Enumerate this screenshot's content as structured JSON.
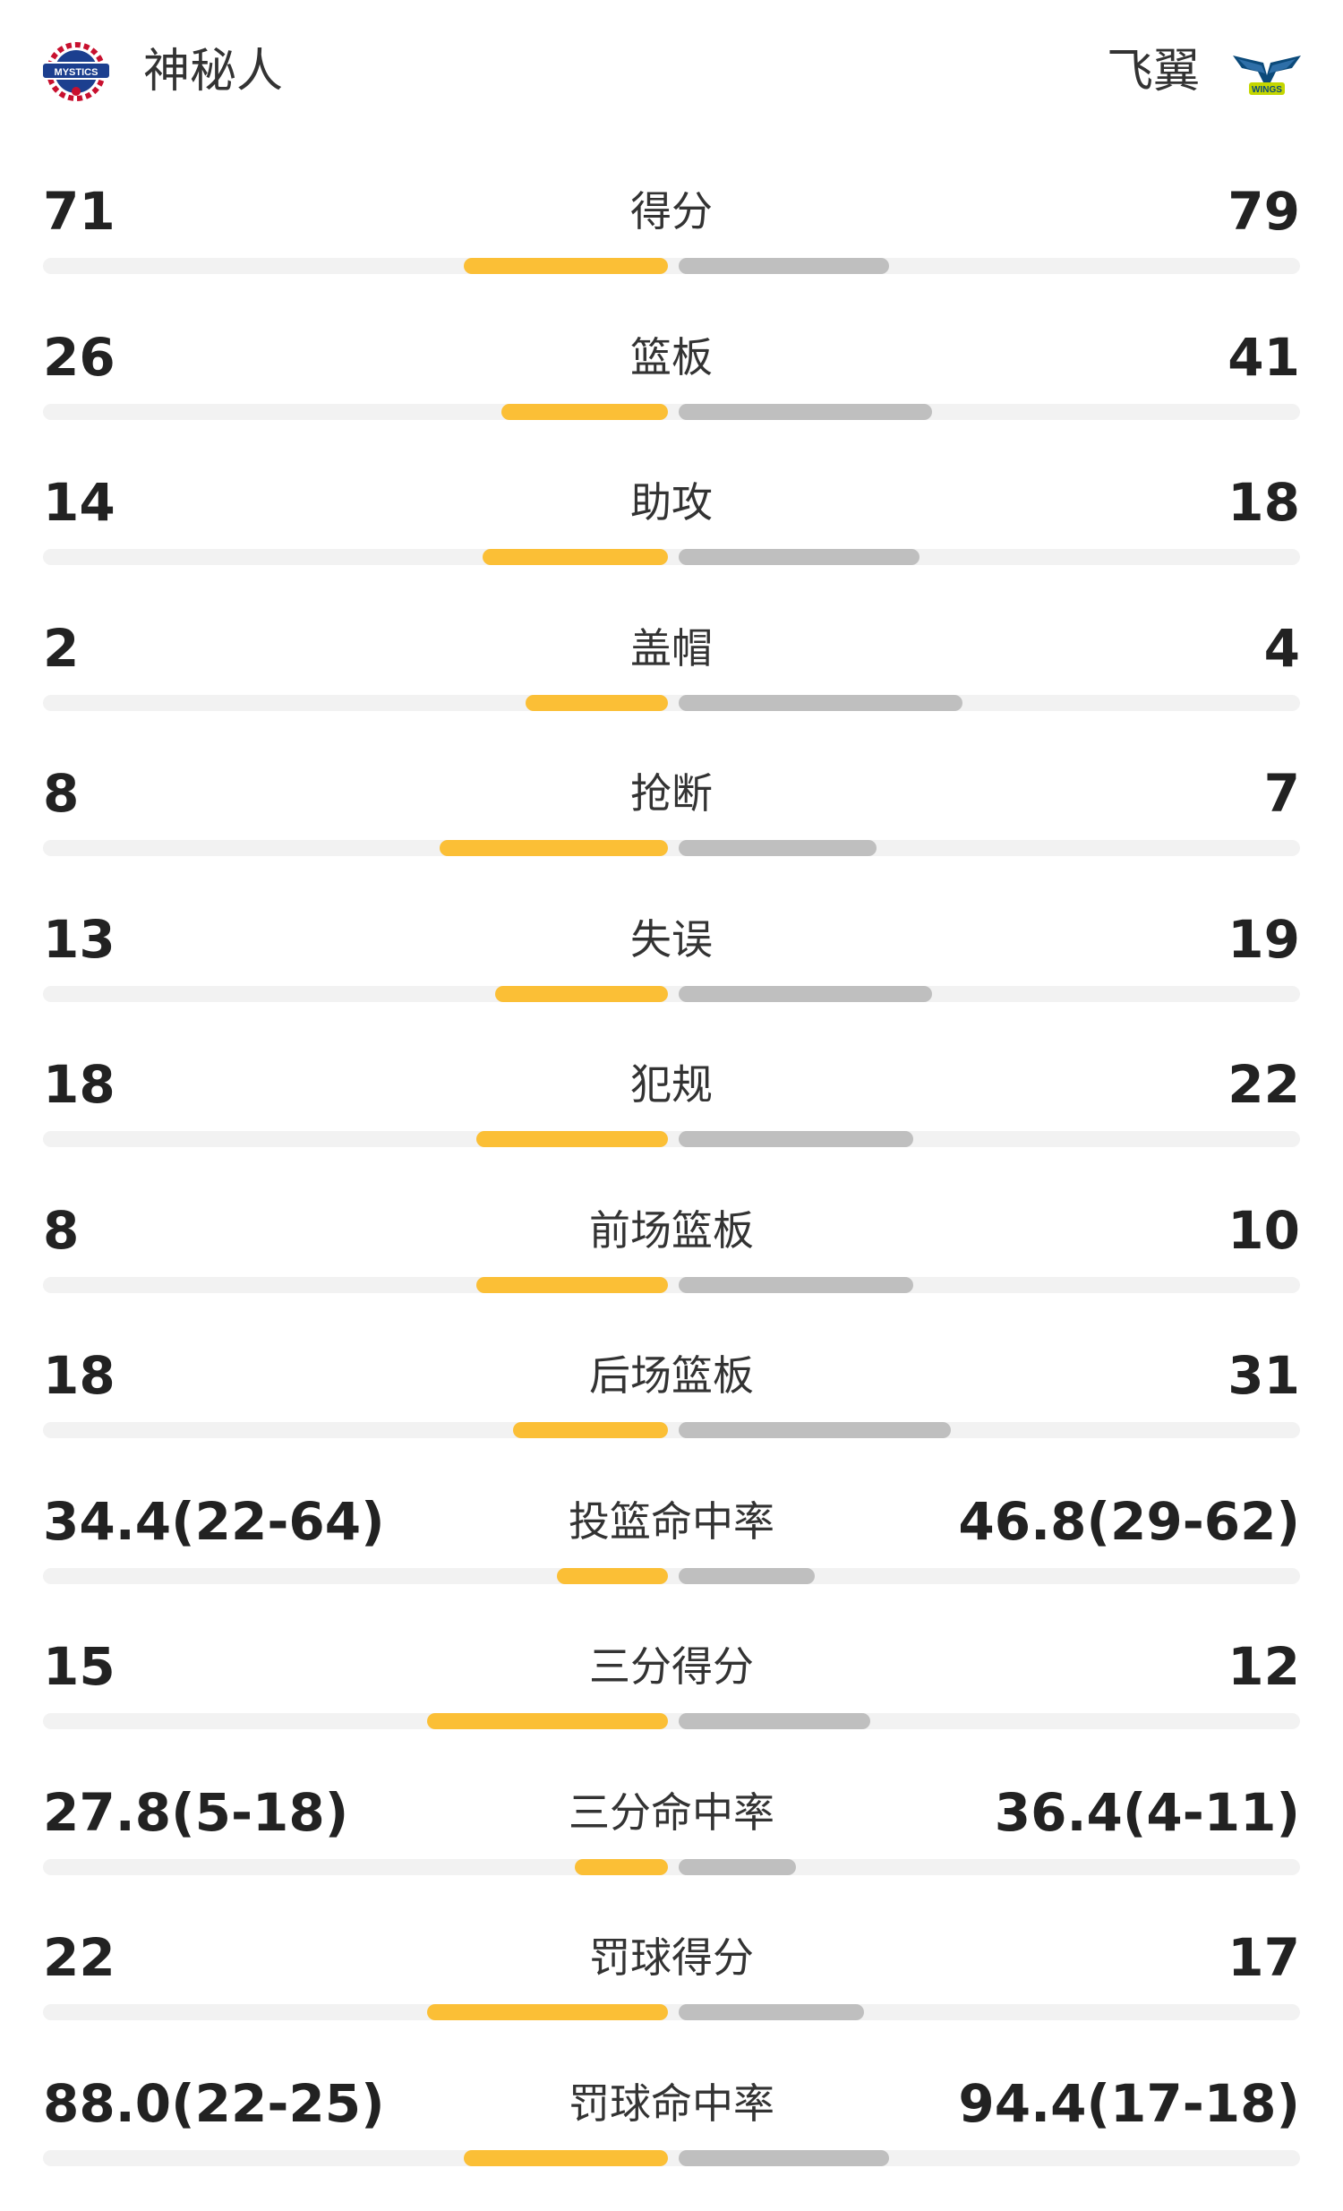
{
  "teams": {
    "home": {
      "name": "神秘人",
      "logo_text": "MYSTICS",
      "logo_color": "#1c3f8f",
      "accent_color": "#c8102e"
    },
    "away": {
      "name": "飞翼",
      "logo_text": "WINGS",
      "logo_color": "#0b4a7a",
      "accent_color": "#c4d600"
    }
  },
  "colors": {
    "home_bar": "#fbbf36",
    "away_bar": "#bfbfbf",
    "track": "#f2f2f2"
  },
  "stats": [
    {
      "label": "得分",
      "home": "71",
      "away": "79",
      "home_ratio": 0.33,
      "away_ratio": 0.34
    },
    {
      "label": "篮板",
      "home": "26",
      "away": "41",
      "home_ratio": 0.27,
      "away_ratio": 0.41
    },
    {
      "label": "助攻",
      "home": "14",
      "away": "18",
      "home_ratio": 0.3,
      "away_ratio": 0.39
    },
    {
      "label": "盖帽",
      "home": "2",
      "away": "4",
      "home_ratio": 0.23,
      "away_ratio": 0.46
    },
    {
      "label": "抢断",
      "home": "8",
      "away": "7",
      "home_ratio": 0.37,
      "away_ratio": 0.32
    },
    {
      "label": "失误",
      "home": "13",
      "away": "19",
      "home_ratio": 0.28,
      "away_ratio": 0.41
    },
    {
      "label": "犯规",
      "home": "18",
      "away": "22",
      "home_ratio": 0.31,
      "away_ratio": 0.38
    },
    {
      "label": "前场篮板",
      "home": "8",
      "away": "10",
      "home_ratio": 0.31,
      "away_ratio": 0.38
    },
    {
      "label": "后场篮板",
      "home": "18",
      "away": "31",
      "home_ratio": 0.25,
      "away_ratio": 0.44
    },
    {
      "label": "投篮命中率",
      "home": "34.4(22-64)",
      "away": "46.8(29-62)",
      "home_ratio": 0.18,
      "away_ratio": 0.22
    },
    {
      "label": "三分得分",
      "home": "15",
      "away": "12",
      "home_ratio": 0.39,
      "away_ratio": 0.31
    },
    {
      "label": "三分命中率",
      "home": "27.8(5-18)",
      "away": "36.4(4-11)",
      "home_ratio": 0.15,
      "away_ratio": 0.19
    },
    {
      "label": "罚球得分",
      "home": "22",
      "away": "17",
      "home_ratio": 0.39,
      "away_ratio": 0.3
    },
    {
      "label": "罚球命中率",
      "home": "88.0(22-25)",
      "away": "94.4(17-18)",
      "home_ratio": 0.33,
      "away_ratio": 0.34
    }
  ]
}
